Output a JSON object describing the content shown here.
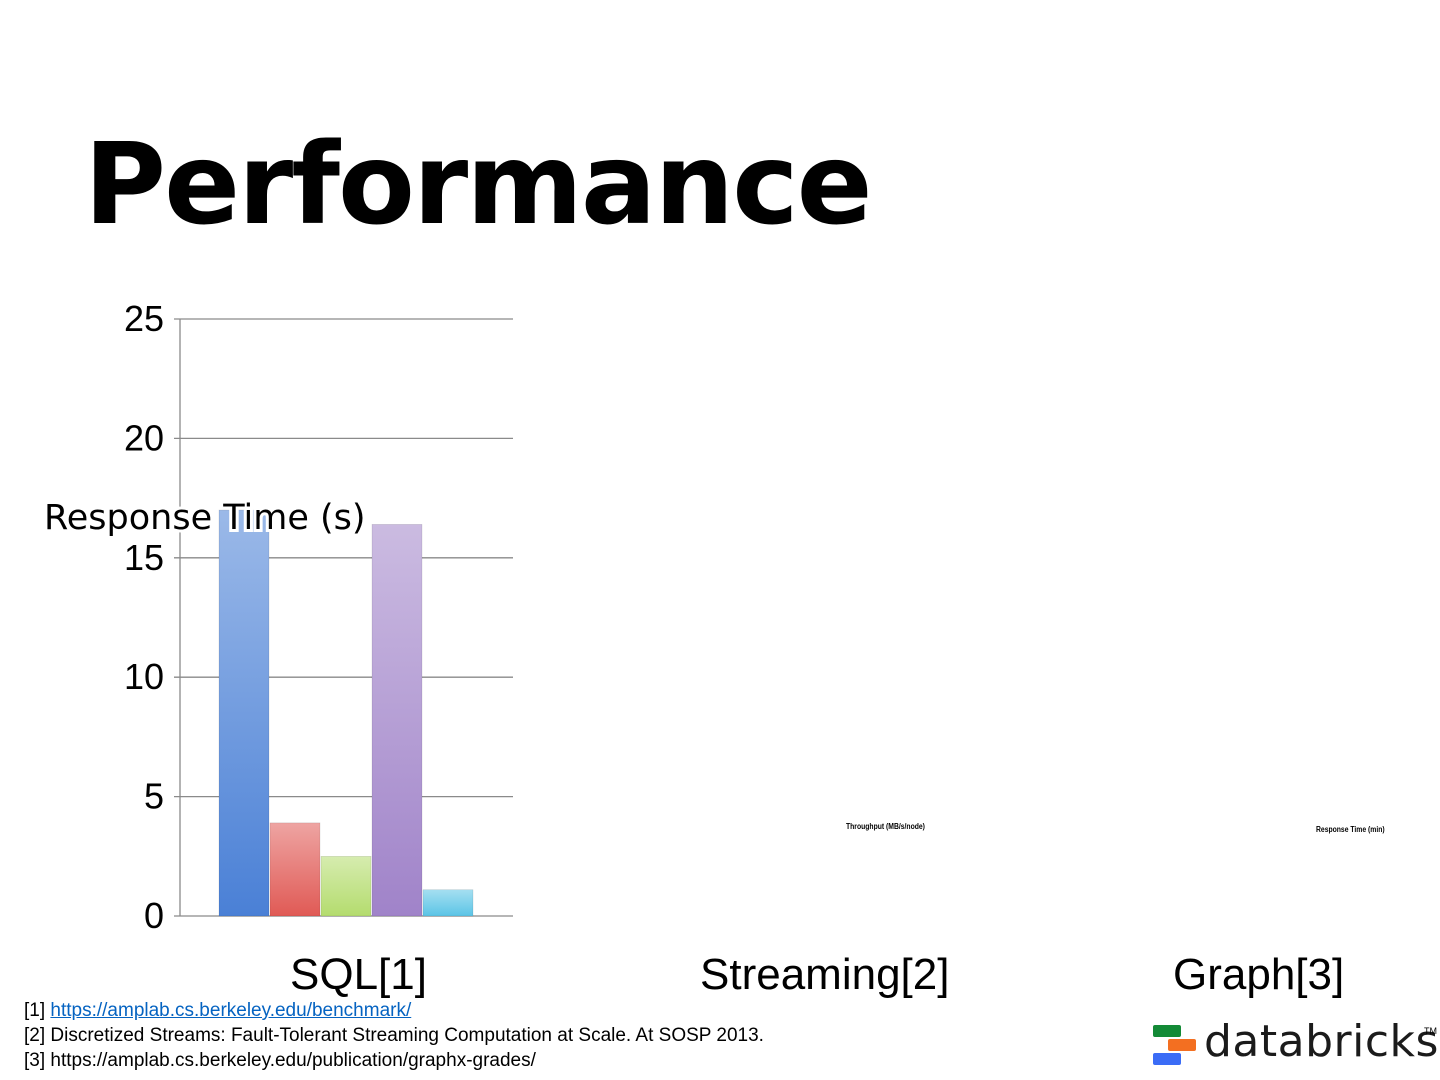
{
  "slide": {
    "title": "Performance"
  },
  "chart_data": [
    {
      "type": "bar",
      "title": "",
      "xlabel": "SQL[1]",
      "ylabel": "Response Time (s)",
      "ylim": [
        0,
        25
      ],
      "yticks": [
        0,
        5,
        10,
        15,
        20,
        25
      ],
      "grid": true,
      "categories": [
        "SQL[1]"
      ],
      "series": [
        {
          "values": [
            17.0
          ],
          "color": "#4a80d6"
        },
        {
          "values": [
            3.9
          ],
          "color": "#e05a55"
        },
        {
          "values": [
            2.5
          ],
          "color": "#b4dc6e"
        },
        {
          "values": [
            16.4
          ],
          "color": "#a083c9"
        },
        {
          "values": [
            1.1
          ],
          "color": "#5bc4e6"
        }
      ]
    },
    {
      "type": "bar",
      "title": "",
      "xlabel": "Streaming[2]",
      "ylabel": "Throughput (MB/s/node)",
      "series": []
    },
    {
      "type": "bar",
      "title": "",
      "xlabel": "Graph[3]",
      "ylabel": "Response Time (min)",
      "series": []
    }
  ],
  "footnotes": [
    {
      "marker": "[1]",
      "text": "https://amplab.cs.berkeley.edu/benchmark/",
      "is_link": true
    },
    {
      "marker": "[2]",
      "text": "Discretized Streams: Fault-Tolerant Streaming Computation at Scale. At SOSP 2013.",
      "is_link": false
    },
    {
      "marker": "[3]",
      "text": "https://amplab.cs.berkeley.edu/publication/graphx-grades/",
      "is_link": false
    }
  ],
  "logo": {
    "text": "databricks",
    "tm": "TM",
    "icon": "databricks-stack-icon"
  }
}
